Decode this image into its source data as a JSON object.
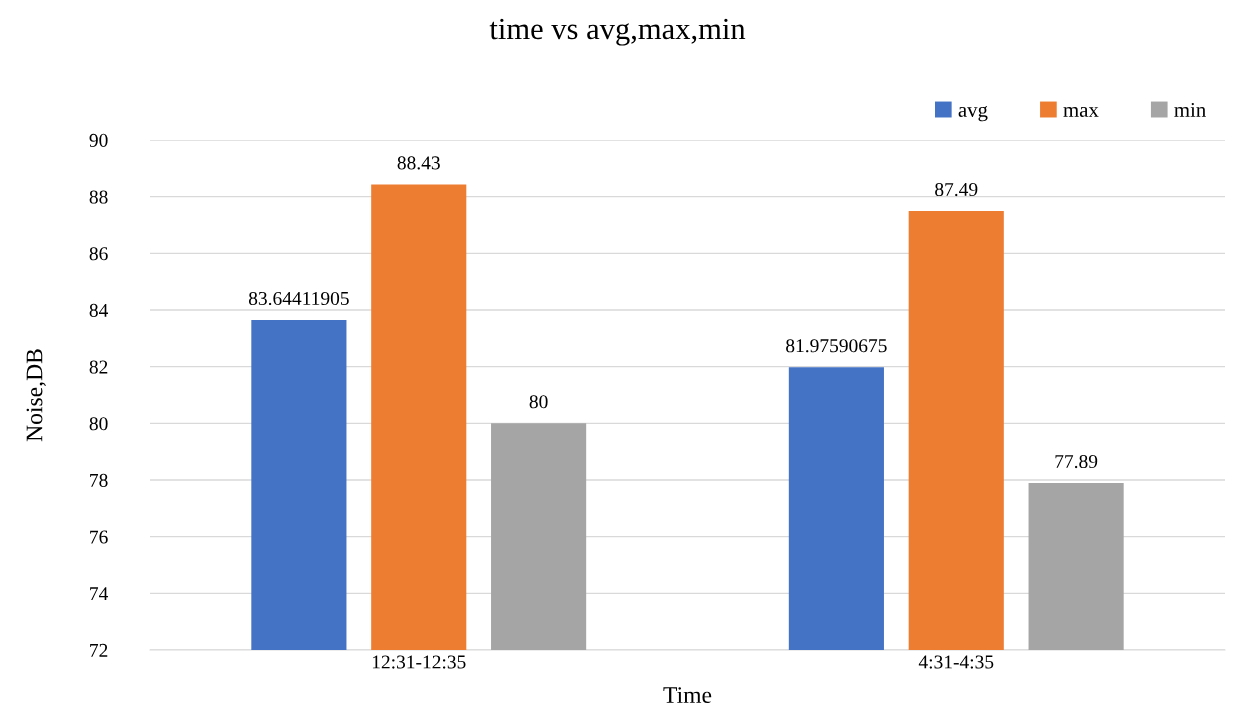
{
  "chart_data": {
    "type": "bar",
    "title": "time vs avg,max,min",
    "xlabel": "Time",
    "ylabel": "Noise,DB",
    "categories": [
      "12:31-12:35",
      "4:31-4:35"
    ],
    "series": [
      {
        "name": "avg",
        "color": "#4472c4",
        "values": [
          83.64411905,
          81.97590675
        ]
      },
      {
        "name": "max",
        "color": "#ed7d31",
        "values": [
          88.43,
          87.49
        ]
      },
      {
        "name": "min",
        "color": "#a5a5a5",
        "values": [
          80,
          77.89
        ]
      }
    ],
    "ylim": [
      72,
      90
    ],
    "yticks": [
      72,
      74,
      76,
      78,
      80,
      82,
      84,
      86,
      88,
      90
    ],
    "grid": "y",
    "legend": "top right",
    "data_labels": true
  }
}
